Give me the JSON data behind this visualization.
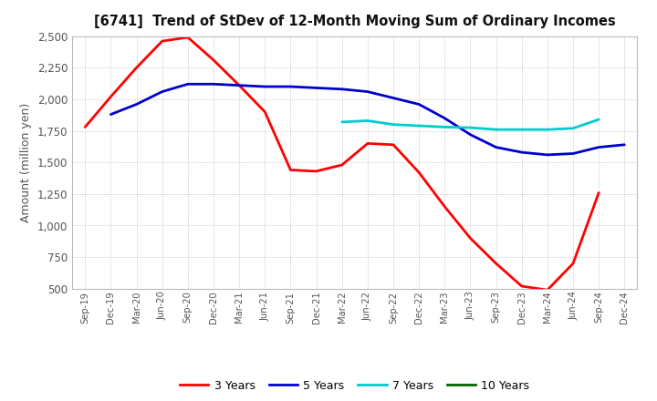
{
  "title": "[6741]  Trend of StDev of 12-Month Moving Sum of Ordinary Incomes",
  "ylabel": "Amount (million yen)",
  "background_color": "#ffffff",
  "plot_bg_color": "#ffffff",
  "grid_color": "#999999",
  "x_labels": [
    "Sep-19",
    "Dec-19",
    "Mar-20",
    "Jun-20",
    "Sep-20",
    "Dec-20",
    "Mar-21",
    "Jun-21",
    "Sep-21",
    "Dec-21",
    "Mar-22",
    "Jun-22",
    "Sep-22",
    "Dec-22",
    "Mar-23",
    "Jun-23",
    "Sep-23",
    "Dec-23",
    "Mar-24",
    "Jun-24",
    "Sep-24",
    "Dec-24"
  ],
  "ylim": [
    500,
    2500
  ],
  "yticks": [
    500,
    750,
    1000,
    1250,
    1500,
    1750,
    2000,
    2250,
    2500
  ],
  "series": [
    {
      "label": "3 Years",
      "color": "#ff0000",
      "linewidth": 2.0,
      "data_y": [
        1780,
        2020,
        2250,
        2460,
        2490,
        2310,
        2110,
        1900,
        1440,
        1430,
        1480,
        1650,
        1640,
        1420,
        1150,
        900,
        700,
        520,
        490,
        700,
        1260,
        null
      ]
    },
    {
      "label": "5 Years",
      "color": "#0000cc",
      "linewidth": 2.0,
      "data_y": [
        null,
        1880,
        1960,
        2060,
        2120,
        2120,
        2110,
        2100,
        2100,
        2090,
        2080,
        2060,
        2010,
        1960,
        1850,
        1720,
        1620,
        1580,
        1560,
        1570,
        1620,
        1640
      ]
    },
    {
      "label": "7 Years",
      "color": "#00cccc",
      "linewidth": 2.0,
      "data_y": [
        null,
        null,
        null,
        null,
        null,
        null,
        null,
        null,
        null,
        null,
        1820,
        1830,
        1800,
        1790,
        1780,
        1775,
        1760,
        1760,
        1760,
        1770,
        1840,
        null
      ]
    },
    {
      "label": "10 Years",
      "color": "#006600",
      "linewidth": 2.0,
      "data_y": [
        null,
        null,
        null,
        null,
        null,
        null,
        null,
        null,
        null,
        null,
        null,
        null,
        null,
        null,
        null,
        null,
        null,
        null,
        null,
        null,
        null,
        null
      ]
    }
  ]
}
